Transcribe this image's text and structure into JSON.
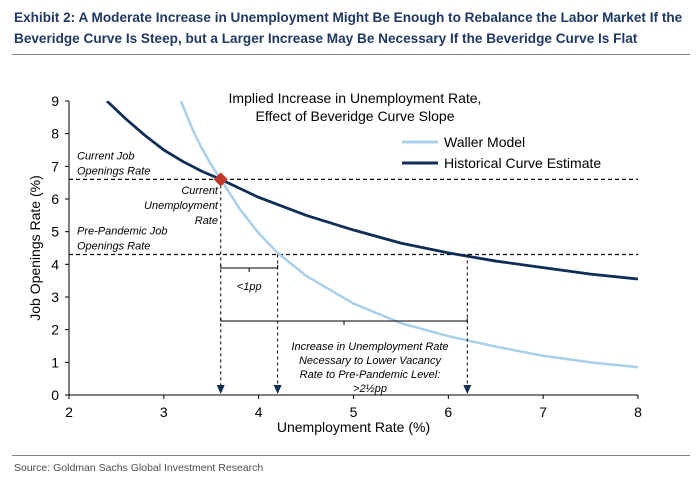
{
  "title": "Exhibit 2: A Moderate Increase in Unemployment Might Be Enough to Rebalance the Labor Market If the Beveridge Curve Is Steep, but a Larger Increase May Be Necessary If the Beveridge Curve Is Flat",
  "source": "Source: Goldman Sachs Global Investment Research",
  "colors": {
    "waller": "#a9cfea",
    "historical": "#0f2d57",
    "marker": "#c0392b",
    "text": "#000000",
    "title": "#1f3864"
  },
  "chart_data": {
    "type": "line",
    "title_lines": [
      "Implied Increase in Unemployment Rate,",
      "Effect of Beveridge Curve Slope"
    ],
    "xlabel": "Unemployment Rate (%)",
    "ylabel": "Job Openings Rate (%)",
    "xlim": [
      2,
      8
    ],
    "ylim": [
      0,
      9
    ],
    "xticks": [
      2,
      3,
      4,
      5,
      6,
      7,
      8
    ],
    "yticks": [
      0,
      1,
      2,
      3,
      4,
      5,
      6,
      7,
      8,
      9
    ],
    "grid": false,
    "legend_position": "top-right",
    "series": [
      {
        "name": "Waller Model",
        "x": [
          3.18,
          3.3,
          3.4,
          3.5,
          3.6,
          3.8,
          4.0,
          4.2,
          4.5,
          5.0,
          5.5,
          6.0,
          6.5,
          7.0,
          7.5,
          8.0
        ],
        "y": [
          9.0,
          8.15,
          7.55,
          7.05,
          6.6,
          5.7,
          4.95,
          4.35,
          3.65,
          2.8,
          2.2,
          1.8,
          1.48,
          1.2,
          1.0,
          0.85
        ]
      },
      {
        "name": "Historical Curve Estimate",
        "x": [
          2.4,
          2.6,
          2.8,
          3.0,
          3.2,
          3.4,
          3.6,
          4.0,
          4.5,
          5.0,
          5.5,
          6.0,
          6.5,
          7.0,
          7.5,
          8.0
        ],
        "y": [
          9.0,
          8.45,
          7.95,
          7.5,
          7.15,
          6.85,
          6.6,
          6.05,
          5.5,
          5.05,
          4.65,
          4.35,
          4.1,
          3.9,
          3.7,
          3.55
        ]
      }
    ],
    "reference_lines": [
      {
        "y": 6.6,
        "label_lines": [
          "Current Job",
          "Openings Rate"
        ]
      },
      {
        "y": 4.3,
        "label_lines": [
          "Pre-Pandemic Job",
          "Openings Rate"
        ]
      }
    ],
    "current_point": {
      "x": 3.6,
      "y": 6.6,
      "label_lines": [
        "Current",
        "Unemployment",
        "Rate"
      ]
    },
    "vertical_markers": [
      {
        "x": 3.6,
        "y": 6.6
      },
      {
        "x": 4.2,
        "y": 4.3
      },
      {
        "x": 6.2,
        "y": 4.3
      }
    ],
    "annotations": {
      "small": {
        "x_from": 3.6,
        "x_to": 4.2,
        "label": "<1pp"
      },
      "large": {
        "x_from": 3.6,
        "x_to": 6.2,
        "label_lines": [
          "Increase in Unemployment Rate",
          "Necessary to Lower Vacancy",
          "Rate to Pre-Pandemic Level:",
          ">2½pp"
        ]
      }
    }
  }
}
